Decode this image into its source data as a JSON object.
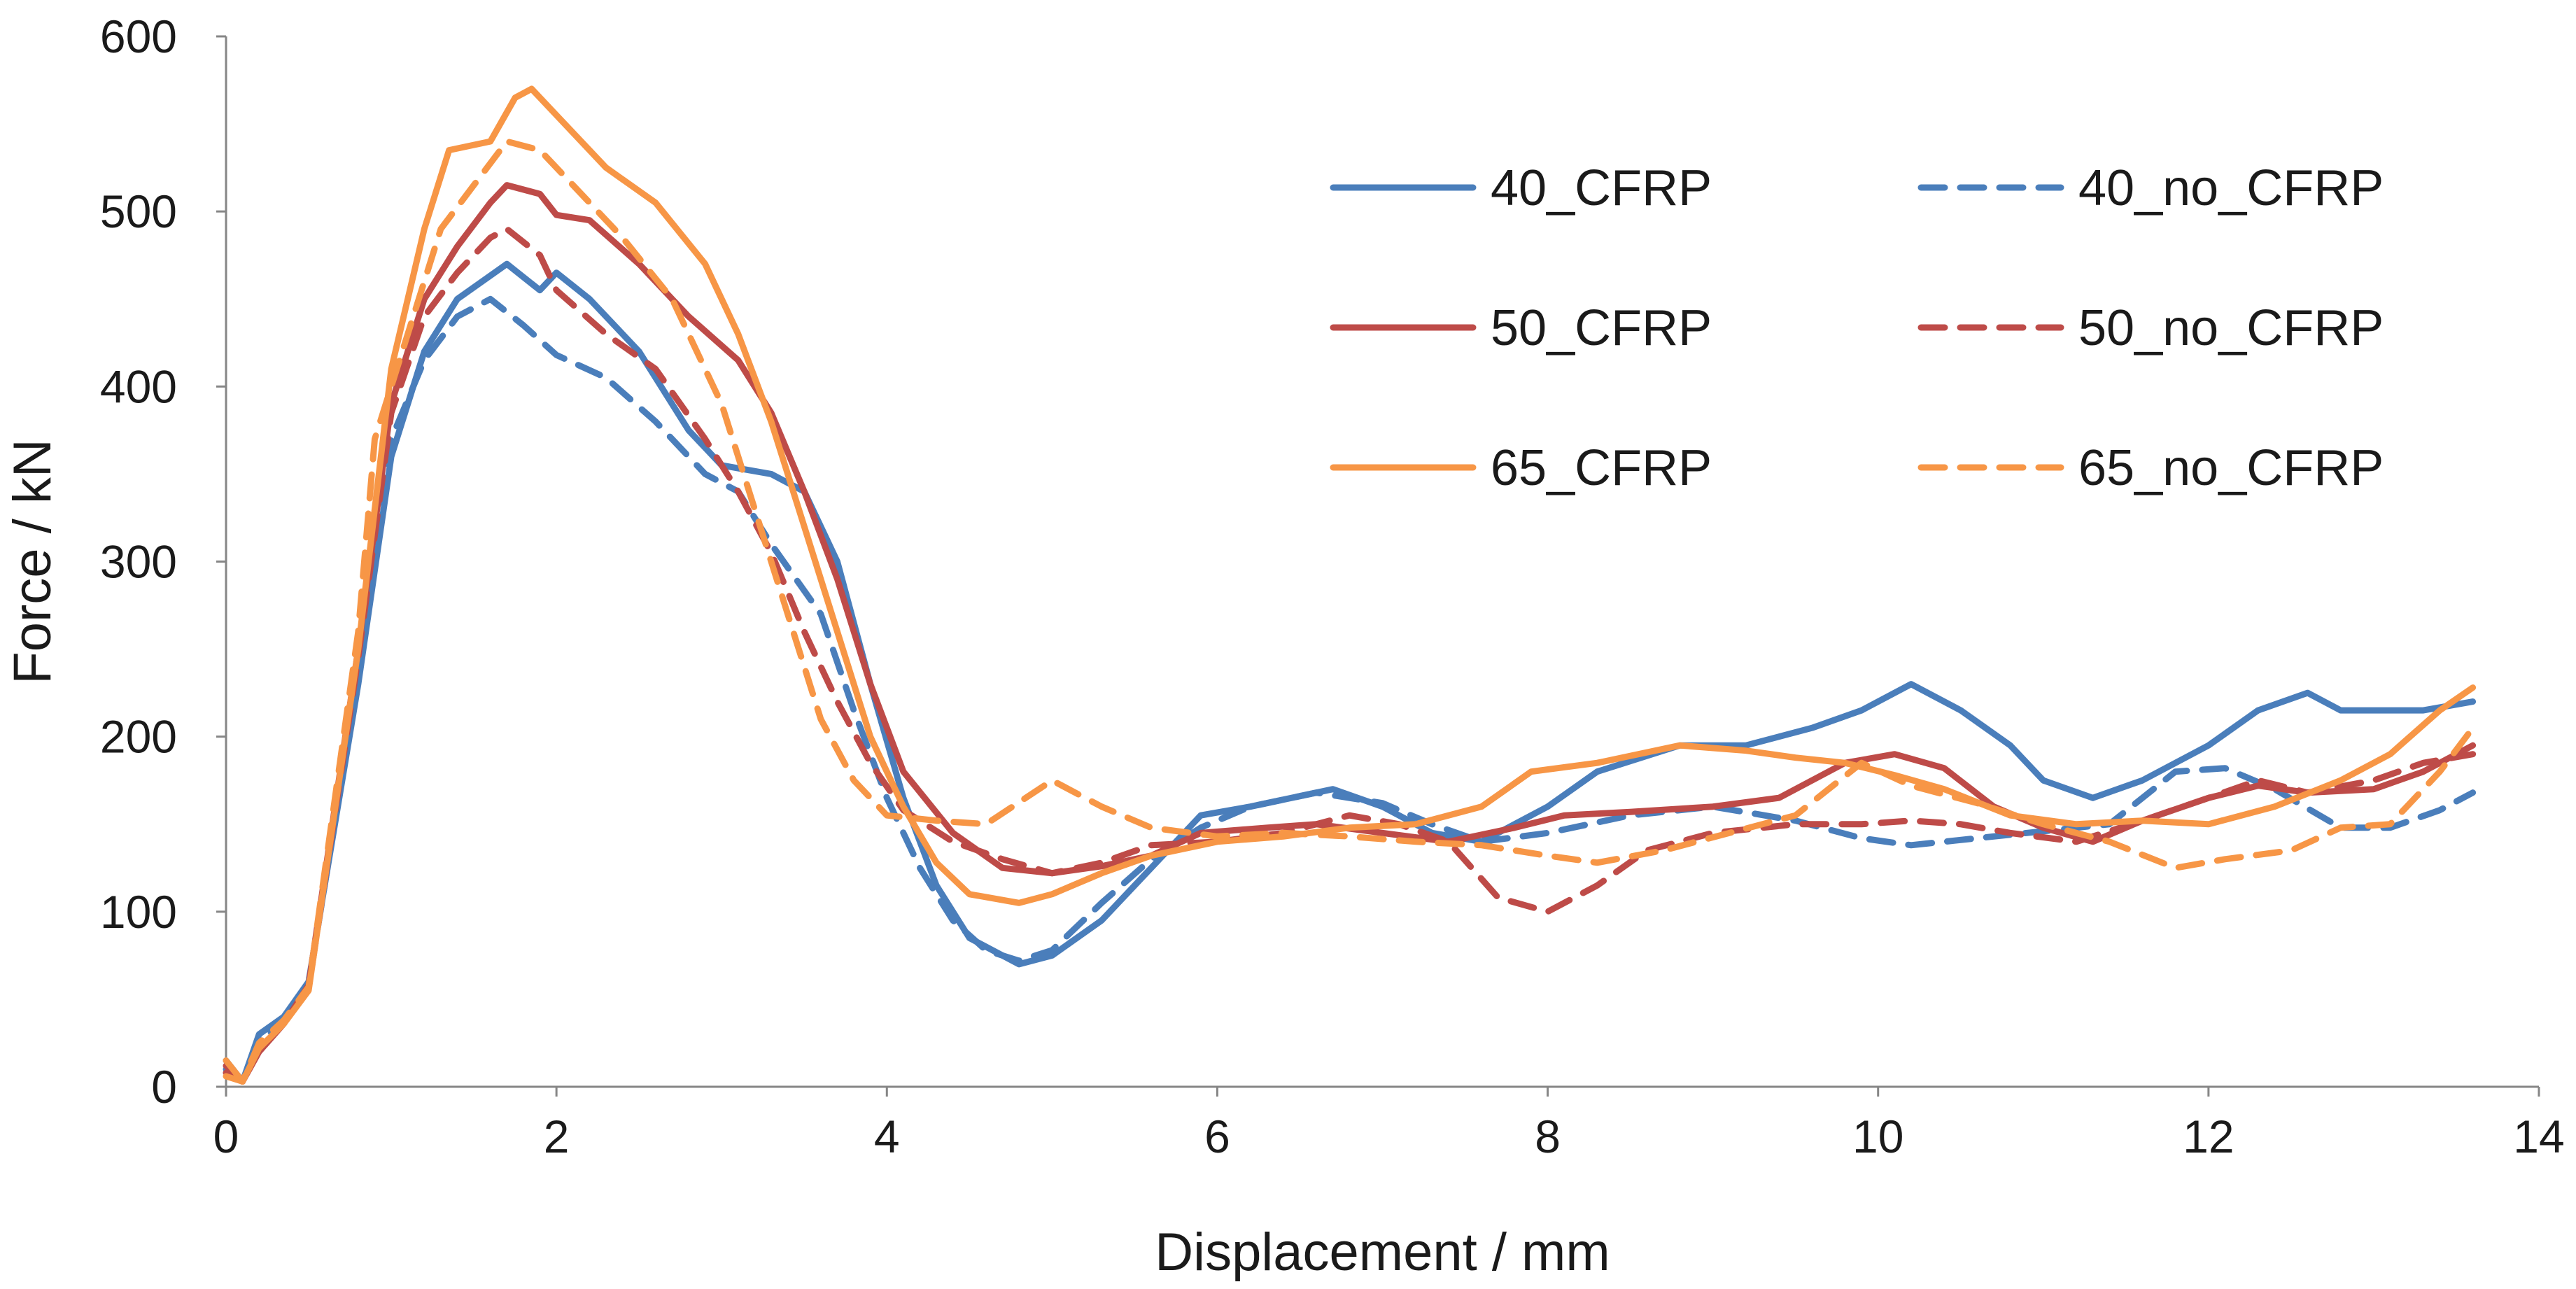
{
  "chart_data": {
    "type": "line",
    "title": "",
    "xlabel": "Displacement / mm",
    "ylabel": "Force / kN",
    "xlim": [
      0,
      14
    ],
    "ylim": [
      0,
      600
    ],
    "x_ticks": [
      0,
      2,
      4,
      6,
      8,
      10,
      12,
      14
    ],
    "y_ticks": [
      0,
      100,
      200,
      300,
      400,
      500,
      600
    ],
    "grid": false,
    "legend_position": "top-right",
    "series": [
      {
        "name": "40_CFRP",
        "color": "#4a7ebb",
        "dash": "solid",
        "points": [
          [
            0,
            15
          ],
          [
            0.1,
            3
          ],
          [
            0.2,
            30
          ],
          [
            0.35,
            40
          ],
          [
            0.5,
            60
          ],
          [
            0.8,
            230
          ],
          [
            1.0,
            360
          ],
          [
            1.2,
            420
          ],
          [
            1.4,
            450
          ],
          [
            1.7,
            470
          ],
          [
            1.9,
            455
          ],
          [
            2.0,
            465
          ],
          [
            2.2,
            450
          ],
          [
            2.5,
            420
          ],
          [
            2.8,
            375
          ],
          [
            3.0,
            355
          ],
          [
            3.3,
            350
          ],
          [
            3.5,
            340
          ],
          [
            3.7,
            300
          ],
          [
            3.9,
            230
          ],
          [
            4.1,
            165
          ],
          [
            4.3,
            115
          ],
          [
            4.5,
            85
          ],
          [
            4.8,
            70
          ],
          [
            5.0,
            75
          ],
          [
            5.3,
            95
          ],
          [
            5.6,
            125
          ],
          [
            5.9,
            155
          ],
          [
            6.2,
            160
          ],
          [
            6.7,
            170
          ],
          [
            7.0,
            160
          ],
          [
            7.3,
            145
          ],
          [
            7.6,
            140
          ],
          [
            8.0,
            160
          ],
          [
            8.3,
            180
          ],
          [
            8.8,
            195
          ],
          [
            9.2,
            195
          ],
          [
            9.6,
            205
          ],
          [
            9.9,
            215
          ],
          [
            10.2,
            230
          ],
          [
            10.5,
            215
          ],
          [
            10.8,
            195
          ],
          [
            11.0,
            175
          ],
          [
            11.3,
            165
          ],
          [
            11.6,
            175
          ],
          [
            12.0,
            195
          ],
          [
            12.3,
            215
          ],
          [
            12.6,
            225
          ],
          [
            12.8,
            215
          ],
          [
            13.0,
            215
          ],
          [
            13.3,
            215
          ],
          [
            13.6,
            220
          ]
        ]
      },
      {
        "name": "40_no_CFRP",
        "color": "#4a7ebb",
        "dash": "dashed",
        "points": [
          [
            0,
            10
          ],
          [
            0.1,
            3
          ],
          [
            0.2,
            25
          ],
          [
            0.35,
            38
          ],
          [
            0.5,
            58
          ],
          [
            0.8,
            235
          ],
          [
            1.0,
            370
          ],
          [
            1.2,
            415
          ],
          [
            1.4,
            440
          ],
          [
            1.6,
            450
          ],
          [
            1.8,
            435
          ],
          [
            2.0,
            418
          ],
          [
            2.3,
            405
          ],
          [
            2.6,
            380
          ],
          [
            2.9,
            350
          ],
          [
            3.1,
            340
          ],
          [
            3.3,
            310
          ],
          [
            3.6,
            270
          ],
          [
            3.8,
            215
          ],
          [
            4.0,
            165
          ],
          [
            4.2,
            125
          ],
          [
            4.4,
            95
          ],
          [
            4.6,
            78
          ],
          [
            4.8,
            72
          ],
          [
            5.0,
            78
          ],
          [
            5.3,
            105
          ],
          [
            5.6,
            130
          ],
          [
            5.9,
            148
          ],
          [
            6.2,
            160
          ],
          [
            6.6,
            168
          ],
          [
            7.0,
            162
          ],
          [
            7.3,
            150
          ],
          [
            7.6,
            140
          ],
          [
            8.0,
            145
          ],
          [
            8.5,
            155
          ],
          [
            9.0,
            160
          ],
          [
            9.5,
            152
          ],
          [
            9.9,
            142
          ],
          [
            10.2,
            138
          ],
          [
            10.6,
            142
          ],
          [
            11.0,
            146
          ],
          [
            11.4,
            150
          ],
          [
            11.8,
            180
          ],
          [
            12.1,
            182
          ],
          [
            12.4,
            170
          ],
          [
            12.8,
            148
          ],
          [
            13.1,
            148
          ],
          [
            13.4,
            158
          ],
          [
            13.6,
            168
          ]
        ]
      },
      {
        "name": "50_CFRP",
        "color": "#be4b48",
        "dash": "solid",
        "points": [
          [
            0,
            12
          ],
          [
            0.1,
            3
          ],
          [
            0.2,
            20
          ],
          [
            0.35,
            36
          ],
          [
            0.5,
            58
          ],
          [
            0.8,
            250
          ],
          [
            1.0,
            390
          ],
          [
            1.2,
            450
          ],
          [
            1.4,
            480
          ],
          [
            1.6,
            505
          ],
          [
            1.7,
            515
          ],
          [
            1.9,
            510
          ],
          [
            2.0,
            498
          ],
          [
            2.2,
            495
          ],
          [
            2.5,
            470
          ],
          [
            2.8,
            440
          ],
          [
            3.1,
            415
          ],
          [
            3.3,
            385
          ],
          [
            3.5,
            340
          ],
          [
            3.7,
            290
          ],
          [
            3.9,
            230
          ],
          [
            4.1,
            180
          ],
          [
            4.4,
            145
          ],
          [
            4.7,
            125
          ],
          [
            5.0,
            122
          ],
          [
            5.3,
            126
          ],
          [
            5.6,
            132
          ],
          [
            5.9,
            145
          ],
          [
            6.3,
            148
          ],
          [
            6.6,
            150
          ],
          [
            7.0,
            145
          ],
          [
            7.4,
            140
          ],
          [
            7.8,
            148
          ],
          [
            8.1,
            155
          ],
          [
            8.5,
            157
          ],
          [
            9.0,
            160
          ],
          [
            9.4,
            165
          ],
          [
            9.8,
            185
          ],
          [
            10.1,
            190
          ],
          [
            10.4,
            182
          ],
          [
            10.7,
            160
          ],
          [
            11.0,
            148
          ],
          [
            11.3,
            140
          ],
          [
            11.6,
            152
          ],
          [
            12.0,
            165
          ],
          [
            12.3,
            172
          ],
          [
            12.6,
            168
          ],
          [
            13.0,
            170
          ],
          [
            13.3,
            180
          ],
          [
            13.6,
            195
          ]
        ]
      },
      {
        "name": "50_no_CFRP",
        "color": "#be4b48",
        "dash": "dashed",
        "points": [
          [
            0,
            8
          ],
          [
            0.1,
            3
          ],
          [
            0.2,
            22
          ],
          [
            0.35,
            37
          ],
          [
            0.5,
            56
          ],
          [
            0.8,
            245
          ],
          [
            1.0,
            385
          ],
          [
            1.2,
            440
          ],
          [
            1.4,
            465
          ],
          [
            1.6,
            485
          ],
          [
            1.7,
            490
          ],
          [
            1.9,
            475
          ],
          [
            2.0,
            455
          ],
          [
            2.3,
            430
          ],
          [
            2.6,
            410
          ],
          [
            2.9,
            370
          ],
          [
            3.1,
            340
          ],
          [
            3.3,
            305
          ],
          [
            3.5,
            260
          ],
          [
            3.7,
            220
          ],
          [
            3.9,
            185
          ],
          [
            4.1,
            158
          ],
          [
            4.4,
            140
          ],
          [
            4.7,
            130
          ],
          [
            5.0,
            122
          ],
          [
            5.3,
            128
          ],
          [
            5.6,
            138
          ],
          [
            6.0,
            140
          ],
          [
            6.4,
            145
          ],
          [
            6.8,
            155
          ],
          [
            7.1,
            150
          ],
          [
            7.4,
            140
          ],
          [
            7.7,
            108
          ],
          [
            8.0,
            100
          ],
          [
            8.3,
            115
          ],
          [
            8.6,
            135
          ],
          [
            9.0,
            145
          ],
          [
            9.5,
            150
          ],
          [
            9.9,
            150
          ],
          [
            10.2,
            152
          ],
          [
            10.5,
            150
          ],
          [
            10.8,
            145
          ],
          [
            11.2,
            140
          ],
          [
            11.6,
            152
          ],
          [
            12.0,
            165
          ],
          [
            12.3,
            175
          ],
          [
            12.6,
            168
          ],
          [
            13.0,
            175
          ],
          [
            13.3,
            185
          ],
          [
            13.6,
            190
          ]
        ]
      },
      {
        "name": "65_CFRP",
        "color": "#f79646",
        "dash": "solid",
        "points": [
          [
            0,
            15
          ],
          [
            0.1,
            3
          ],
          [
            0.2,
            22
          ],
          [
            0.35,
            36
          ],
          [
            0.5,
            55
          ],
          [
            0.8,
            250
          ],
          [
            1.0,
            410
          ],
          [
            1.2,
            490
          ],
          [
            1.35,
            535
          ],
          [
            1.6,
            540
          ],
          [
            1.75,
            565
          ],
          [
            1.85,
            570
          ],
          [
            2.0,
            555
          ],
          [
            2.3,
            525
          ],
          [
            2.6,
            505
          ],
          [
            2.9,
            470
          ],
          [
            3.1,
            430
          ],
          [
            3.3,
            380
          ],
          [
            3.5,
            320
          ],
          [
            3.7,
            260
          ],
          [
            3.9,
            200
          ],
          [
            4.1,
            160
          ],
          [
            4.3,
            128
          ],
          [
            4.5,
            110
          ],
          [
            4.8,
            105
          ],
          [
            5.0,
            110
          ],
          [
            5.3,
            122
          ],
          [
            5.6,
            132
          ],
          [
            6.0,
            140
          ],
          [
            6.4,
            143
          ],
          [
            6.8,
            148
          ],
          [
            7.2,
            150
          ],
          [
            7.6,
            160
          ],
          [
            7.9,
            180
          ],
          [
            8.3,
            185
          ],
          [
            8.8,
            195
          ],
          [
            9.2,
            192
          ],
          [
            9.5,
            188
          ],
          [
            9.8,
            185
          ],
          [
            10.1,
            178
          ],
          [
            10.4,
            170
          ],
          [
            10.8,
            155
          ],
          [
            11.2,
            150
          ],
          [
            11.6,
            152
          ],
          [
            12.0,
            150
          ],
          [
            12.4,
            160
          ],
          [
            12.8,
            175
          ],
          [
            13.1,
            190
          ],
          [
            13.4,
            215
          ],
          [
            13.6,
            228
          ]
        ]
      },
      {
        "name": "65_no_CFRP",
        "color": "#f79646",
        "dash": "dashed",
        "points": [
          [
            0,
            6
          ],
          [
            0.1,
            3
          ],
          [
            0.2,
            25
          ],
          [
            0.35,
            38
          ],
          [
            0.5,
            57
          ],
          [
            0.8,
            260
          ],
          [
            0.9,
            370
          ],
          [
            1.1,
            430
          ],
          [
            1.3,
            490
          ],
          [
            1.5,
            515
          ],
          [
            1.7,
            540
          ],
          [
            1.9,
            535
          ],
          [
            2.1,
            515
          ],
          [
            2.4,
            485
          ],
          [
            2.7,
            450
          ],
          [
            3.0,
            390
          ],
          [
            3.2,
            330
          ],
          [
            3.4,
            270
          ],
          [
            3.6,
            210
          ],
          [
            3.8,
            175
          ],
          [
            4.0,
            155
          ],
          [
            4.3,
            152
          ],
          [
            4.6,
            150
          ],
          [
            5.0,
            175
          ],
          [
            5.3,
            160
          ],
          [
            5.6,
            148
          ],
          [
            6.0,
            143
          ],
          [
            6.4,
            145
          ],
          [
            6.8,
            143
          ],
          [
            7.2,
            140
          ],
          [
            7.6,
            138
          ],
          [
            8.0,
            132
          ],
          [
            8.3,
            128
          ],
          [
            8.7,
            135
          ],
          [
            9.1,
            145
          ],
          [
            9.5,
            155
          ],
          [
            9.9,
            185
          ],
          [
            10.2,
            172
          ],
          [
            10.6,
            162
          ],
          [
            11.0,
            150
          ],
          [
            11.4,
            140
          ],
          [
            11.8,
            125
          ],
          [
            12.1,
            130
          ],
          [
            12.5,
            135
          ],
          [
            12.8,
            148
          ],
          [
            13.1,
            150
          ],
          [
            13.4,
            180
          ],
          [
            13.6,
            205
          ]
        ]
      }
    ]
  }
}
